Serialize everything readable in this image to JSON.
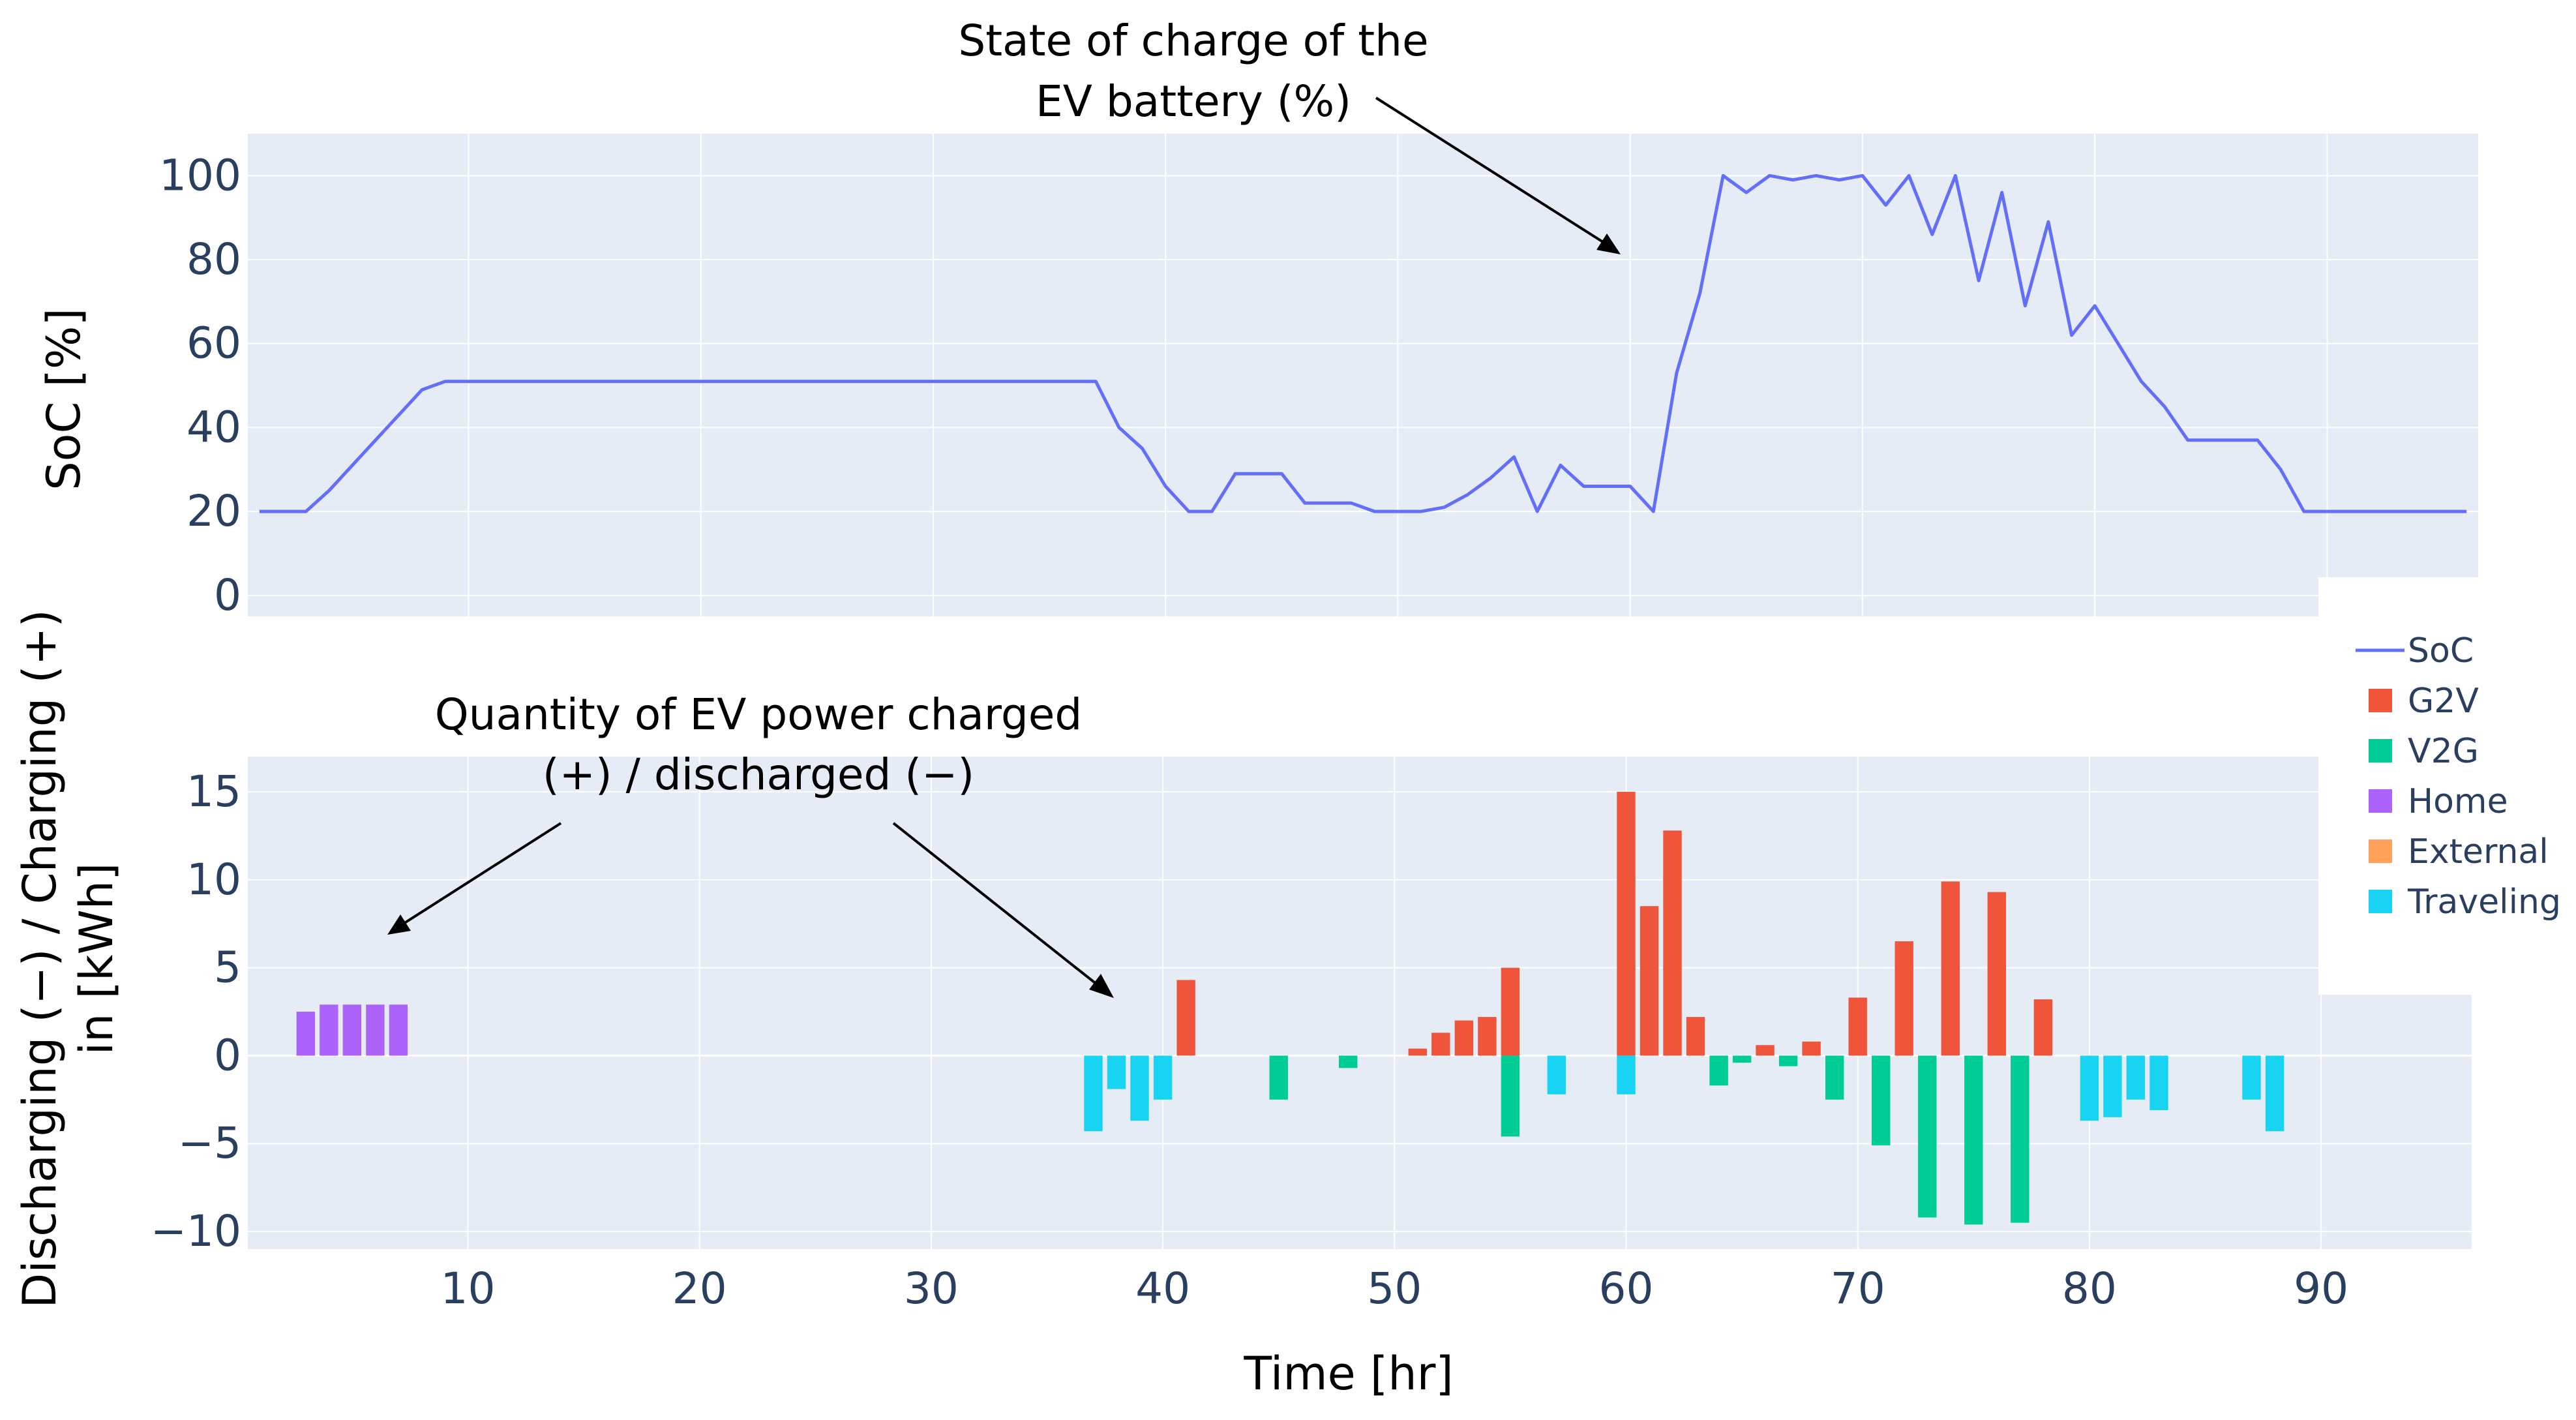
{
  "chart_data": [
    {
      "type": "line",
      "panel": "top",
      "ylabel": "SoC [%]",
      "ylim": [
        -5,
        110
      ],
      "yticks": [
        0,
        20,
        40,
        60,
        80,
        100
      ],
      "xlim": [
        0.5,
        96.5
      ],
      "xgrid": [
        10,
        20,
        30,
        40,
        50,
        60,
        70,
        80,
        90
      ],
      "series": [
        {
          "name": "SoC",
          "color": "#636efa",
          "x": [
            1,
            2,
            3,
            4,
            5,
            6,
            7,
            8,
            9,
            10,
            11,
            12,
            13,
            14,
            15,
            16,
            17,
            18,
            19,
            20,
            21,
            22,
            23,
            24,
            25,
            26,
            27,
            28,
            29,
            30,
            31,
            32,
            33,
            34,
            35,
            36,
            37,
            38,
            39,
            40,
            41,
            42,
            43,
            44,
            45,
            46,
            47,
            48,
            49,
            50,
            51,
            52,
            53,
            54,
            55,
            56,
            57,
            58,
            59,
            60,
            61,
            62,
            63,
            64,
            65,
            66,
            67,
            68,
            69,
            70,
            71,
            72,
            73,
            74,
            75,
            76,
            77,
            78,
            79,
            80,
            81,
            82,
            83,
            84,
            85,
            86,
            87,
            88,
            89,
            90,
            91,
            92,
            93,
            94,
            95,
            96
          ],
          "y": [
            20,
            20,
            20,
            25,
            31,
            37,
            43,
            49,
            51,
            51,
            51,
            51,
            51,
            51,
            51,
            51,
            51,
            51,
            51,
            51,
            51,
            51,
            51,
            51,
            51,
            51,
            51,
            51,
            51,
            51,
            51,
            51,
            51,
            51,
            51,
            51,
            51,
            40,
            35,
            26,
            20,
            20,
            29,
            29,
            29,
            22,
            22,
            22,
            20,
            20,
            20,
            21,
            24,
            28,
            33,
            20,
            31,
            26,
            26,
            26,
            20,
            53,
            72,
            100,
            96,
            100,
            99,
            100,
            99,
            100,
            93,
            100,
            86,
            100,
            75,
            96,
            69,
            89,
            62,
            69,
            60,
            51,
            45,
            37,
            37,
            37,
            37,
            30,
            20,
            20,
            20,
            20,
            20,
            20,
            20,
            20
          ]
        }
      ],
      "annotation": {
        "lines": [
          "State of charge of the",
          "EV battery (%)"
        ]
      }
    },
    {
      "type": "bar",
      "panel": "bottom",
      "ylabel_lines": [
        "Discharging (−) / Charging (+)",
        "in [kWh]"
      ],
      "xlabel": "Time [hr]",
      "ylim": [
        -11,
        17
      ],
      "yticks": [
        -10,
        -5,
        0,
        5,
        10,
        15
      ],
      "xlim": [
        0.5,
        96.5
      ],
      "xticks": [
        10,
        20,
        30,
        40,
        50,
        60,
        70,
        80,
        90
      ],
      "series": [
        {
          "name": "G2V",
          "color": "#ef553b",
          "x": [
            41,
            51,
            52,
            53,
            54,
            55,
            60,
            61,
            62,
            63,
            66,
            68,
            70,
            72,
            74,
            76,
            78
          ],
          "y": [
            4.3,
            0.4,
            1.3,
            2.0,
            2.2,
            5.0,
            15.0,
            8.5,
            12.8,
            2.2,
            0.6,
            0.8,
            3.3,
            6.5,
            9.9,
            9.3,
            3.2
          ]
        },
        {
          "name": "V2G",
          "color": "#00cc96",
          "x": [
            45,
            48,
            55,
            64,
            65,
            67,
            69,
            71,
            73,
            75,
            77
          ],
          "y": [
            -2.5,
            -0.7,
            -4.6,
            -1.7,
            -0.4,
            -0.6,
            -2.5,
            -5.1,
            -9.2,
            -9.6,
            -9.5
          ]
        },
        {
          "name": "Home",
          "color": "#ab63fa",
          "x": [
            3,
            4,
            5,
            6,
            7
          ],
          "y": [
            2.5,
            2.9,
            2.9,
            2.9,
            2.9
          ]
        },
        {
          "name": "External",
          "color": "#ffa15a",
          "x": [],
          "y": []
        },
        {
          "name": "Traveling",
          "color": "#19d3f3",
          "x": [
            37,
            38,
            39,
            40,
            57,
            60,
            80,
            81,
            82,
            83,
            87,
            88
          ],
          "y": [
            -4.3,
            -1.9,
            -3.7,
            -2.5,
            -2.2,
            -2.2,
            -3.7,
            -3.5,
            -2.5,
            -3.1,
            -2.5,
            -4.3
          ]
        }
      ],
      "annotation": {
        "lines": [
          "Quantity of EV power charged",
          "(+) / discharged (−)"
        ]
      }
    }
  ],
  "legend": {
    "position": "right",
    "items": [
      {
        "name": "SoC",
        "kind": "line",
        "color": "#636efa"
      },
      {
        "name": "G2V",
        "kind": "bar",
        "color": "#ef553b"
      },
      {
        "name": "V2G",
        "kind": "bar",
        "color": "#00cc96"
      },
      {
        "name": "Home",
        "kind": "bar",
        "color": "#ab63fa"
      },
      {
        "name": "External",
        "kind": "bar",
        "color": "#ffa15a"
      },
      {
        "name": "Traveling",
        "kind": "bar",
        "color": "#19d3f3"
      }
    ]
  },
  "colors": {
    "plot_background": "#e5ecf6",
    "grid": "#ffffff",
    "tick_text": "#2a3f5f"
  }
}
